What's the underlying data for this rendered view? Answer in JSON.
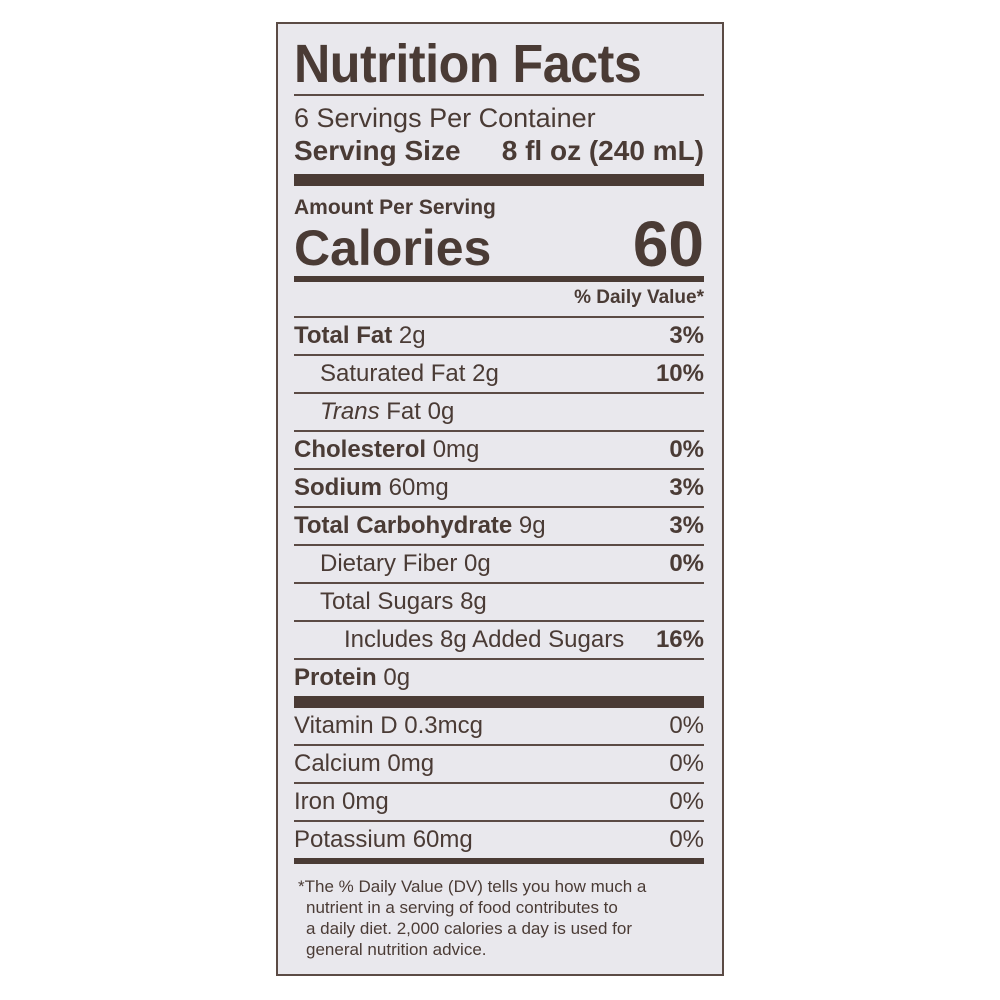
{
  "label": {
    "title": "Nutrition Facts",
    "servings_per_container": "6 Servings Per Container",
    "serving_size_label": "Serving Size",
    "serving_size_value": "8 fl oz (240 mL)",
    "amount_per_serving": "Amount Per Serving",
    "calories_label": "Calories",
    "calories_value": "60",
    "daily_value_header": "% Daily Value*",
    "nutrients": [
      {
        "name": "Total Fat",
        "amount": "2g",
        "pct": "3%"
      },
      {
        "name": "Saturated Fat",
        "amount": "2g",
        "pct": "10%"
      },
      {
        "name": "Trans",
        "amount": "Fat 0g",
        "pct": ""
      },
      {
        "name": "Cholesterol",
        "amount": "0mg",
        "pct": "0%"
      },
      {
        "name": "Sodium",
        "amount": "60mg",
        "pct": "3%"
      },
      {
        "name": "Total Carbohydrate",
        "amount": "9g",
        "pct": "3%"
      },
      {
        "name": "Dietary Fiber",
        "amount": "0g",
        "pct": "0%"
      },
      {
        "name": "Total Sugars",
        "amount": "8g",
        "pct": ""
      },
      {
        "name": "Includes 8g Added Sugars",
        "amount": "",
        "pct": "16%"
      },
      {
        "name": "Protein",
        "amount": "0g",
        "pct": ""
      }
    ],
    "vitamins": [
      {
        "text": "Vitamin D 0.3mcg",
        "pct": "0%"
      },
      {
        "text": "Calcium 0mg",
        "pct": "0%"
      },
      {
        "text": "Iron 0mg",
        "pct": "0%"
      },
      {
        "text": "Potassium 60mg",
        "pct": "0%"
      }
    ],
    "footnote_lines": [
      "*The % Daily Value (DV) tells you how much a",
      "nutrient in a serving of food contributes to",
      "a daily diet. 2,000 calories a day is used for",
      "general nutrition advice."
    ]
  }
}
